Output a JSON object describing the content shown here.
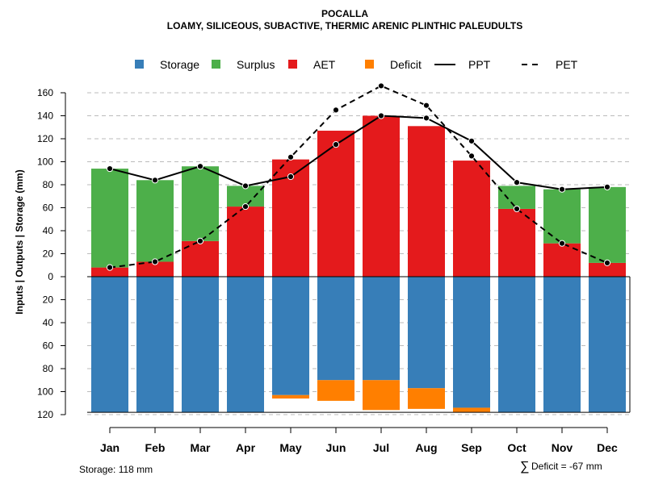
{
  "chart_data": {
    "type": "bar",
    "title": "POCALLA",
    "subtitle": "LOAMY, SILICEOUS, SUBACTIVE, THERMIC ARENIC PLINTHIC PALEUDULTS",
    "ylabel": "Inputs | Outputs | Storage     (mm)",
    "categories": [
      "Jan",
      "Feb",
      "Mar",
      "Apr",
      "May",
      "Jun",
      "Jul",
      "Aug",
      "Sep",
      "Oct",
      "Nov",
      "Dec"
    ],
    "ylim": [
      -120,
      170
    ],
    "yticks": [
      {
        "value": 160,
        "label": "160"
      },
      {
        "value": 140,
        "label": "140"
      },
      {
        "value": 120,
        "label": "120"
      },
      {
        "value": 100,
        "label": "100"
      },
      {
        "value": 80,
        "label": "80"
      },
      {
        "value": 60,
        "label": "60"
      },
      {
        "value": 40,
        "label": "40"
      },
      {
        "value": 20,
        "label": "20"
      },
      {
        "value": 0,
        "label": "0"
      },
      {
        "value": -20,
        "label": "20"
      },
      {
        "value": -40,
        "label": "40"
      },
      {
        "value": -60,
        "label": "60"
      },
      {
        "value": -80,
        "label": "80"
      },
      {
        "value": -100,
        "label": "100"
      },
      {
        "value": -120,
        "label": "120"
      }
    ],
    "grid": true,
    "legend_position": "top",
    "legend": [
      {
        "label": "Storage",
        "kind": "box",
        "color": "#377eb8"
      },
      {
        "label": "Surplus",
        "kind": "box",
        "color": "#4daf4a"
      },
      {
        "label": "AET",
        "kind": "box",
        "color": "#e41a1c"
      },
      {
        "label": "Deficit",
        "kind": "box",
        "color": "#ff7f00"
      },
      {
        "label": "PPT",
        "kind": "solid-line",
        "color": "#000000"
      },
      {
        "label": "PET",
        "kind": "dashed-line",
        "color": "#000000"
      }
    ],
    "series": [
      {
        "name": "AET",
        "color": "#e41a1c",
        "values": [
          8,
          13,
          31,
          61,
          102,
          127,
          140,
          131,
          101,
          59,
          29,
          12
        ]
      },
      {
        "name": "Surplus",
        "color": "#4daf4a",
        "values": [
          86,
          71,
          65,
          18,
          0,
          0,
          0,
          0,
          0,
          20,
          47,
          66
        ]
      },
      {
        "name": "Storage",
        "color": "#377eb8",
        "values": [
          118,
          118,
          118,
          118,
          103,
          90,
          90,
          97,
          114,
          118,
          118,
          118
        ]
      },
      {
        "name": "Deficit",
        "color": "#ff7f00",
        "values": [
          0,
          0,
          0,
          0,
          3,
          18,
          26,
          18,
          4,
          0,
          0,
          0
        ]
      },
      {
        "name": "PPT",
        "color": "#000000",
        "values": [
          94,
          84,
          96,
          79,
          87,
          115,
          140,
          138,
          118,
          82,
          76,
          78
        ]
      },
      {
        "name": "PET",
        "color": "#000000",
        "values": [
          8,
          13,
          31,
          61,
          104,
          145,
          166,
          149,
          105,
          59,
          29,
          12
        ]
      }
    ],
    "annotations": {
      "storage": "Storage: 118 mm",
      "deficit_symbol": "∑",
      "deficit": "Deficit = -67 mm"
    }
  }
}
